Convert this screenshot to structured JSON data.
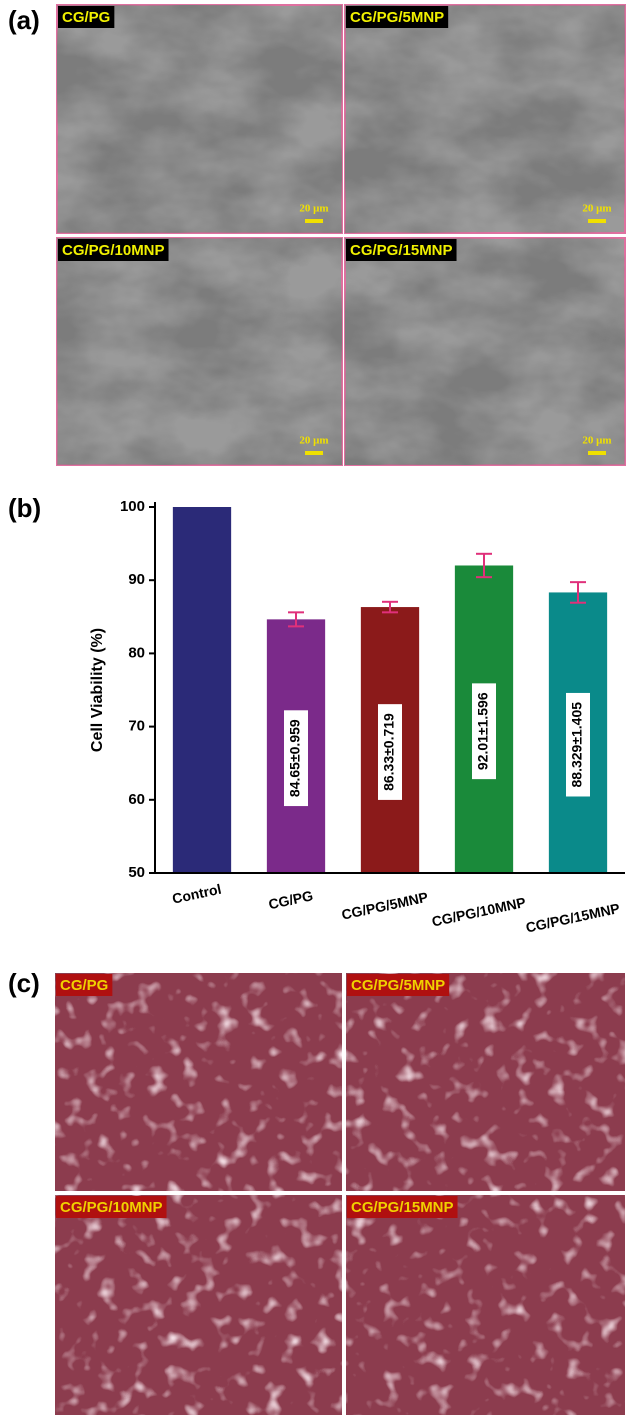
{
  "panel_a": {
    "label": "(a)",
    "images": [
      {
        "label": "CG/PG",
        "scale": "20 μm"
      },
      {
        "label": "CG/PG/5MNP",
        "scale": "20 μm"
      },
      {
        "label": "CG/PG/10MNP",
        "scale": "20 μm"
      },
      {
        "label": "CG/PG/15MNP",
        "scale": "20 μm"
      }
    ]
  },
  "panel_b": {
    "label": "(b)"
  },
  "chart_data": {
    "type": "bar",
    "y_label": "Cell Viability (%)",
    "categories": [
      "Control",
      "CG/PG",
      "CG/PG/5MNP",
      "CG/PG/10MNP",
      "CG/PG/15MNP"
    ],
    "values": [
      100,
      84.65,
      86.33,
      92.01,
      88.329
    ],
    "errors": [
      null,
      0.959,
      0.719,
      1.596,
      1.405
    ],
    "value_labels": [
      null,
      "84.65±0.959",
      "86.33±0.719",
      "92.01±1.596",
      "88.329±1.405"
    ],
    "colors": [
      "#2b2a78",
      "#7b2a8a",
      "#8b1a1a",
      "#1a8a3a",
      "#0a8a8a"
    ],
    "error_color": "#e0307a",
    "ylim": [
      50,
      100
    ],
    "yticks": [
      50,
      60,
      70,
      80,
      90,
      100
    ]
  },
  "panel_c": {
    "label": "(c)",
    "images": [
      {
        "label": "CG/PG"
      },
      {
        "label": "CG/PG/5MNP"
      },
      {
        "label": "CG/PG/10MNP"
      },
      {
        "label": "CG/PG/15MNP"
      }
    ]
  }
}
